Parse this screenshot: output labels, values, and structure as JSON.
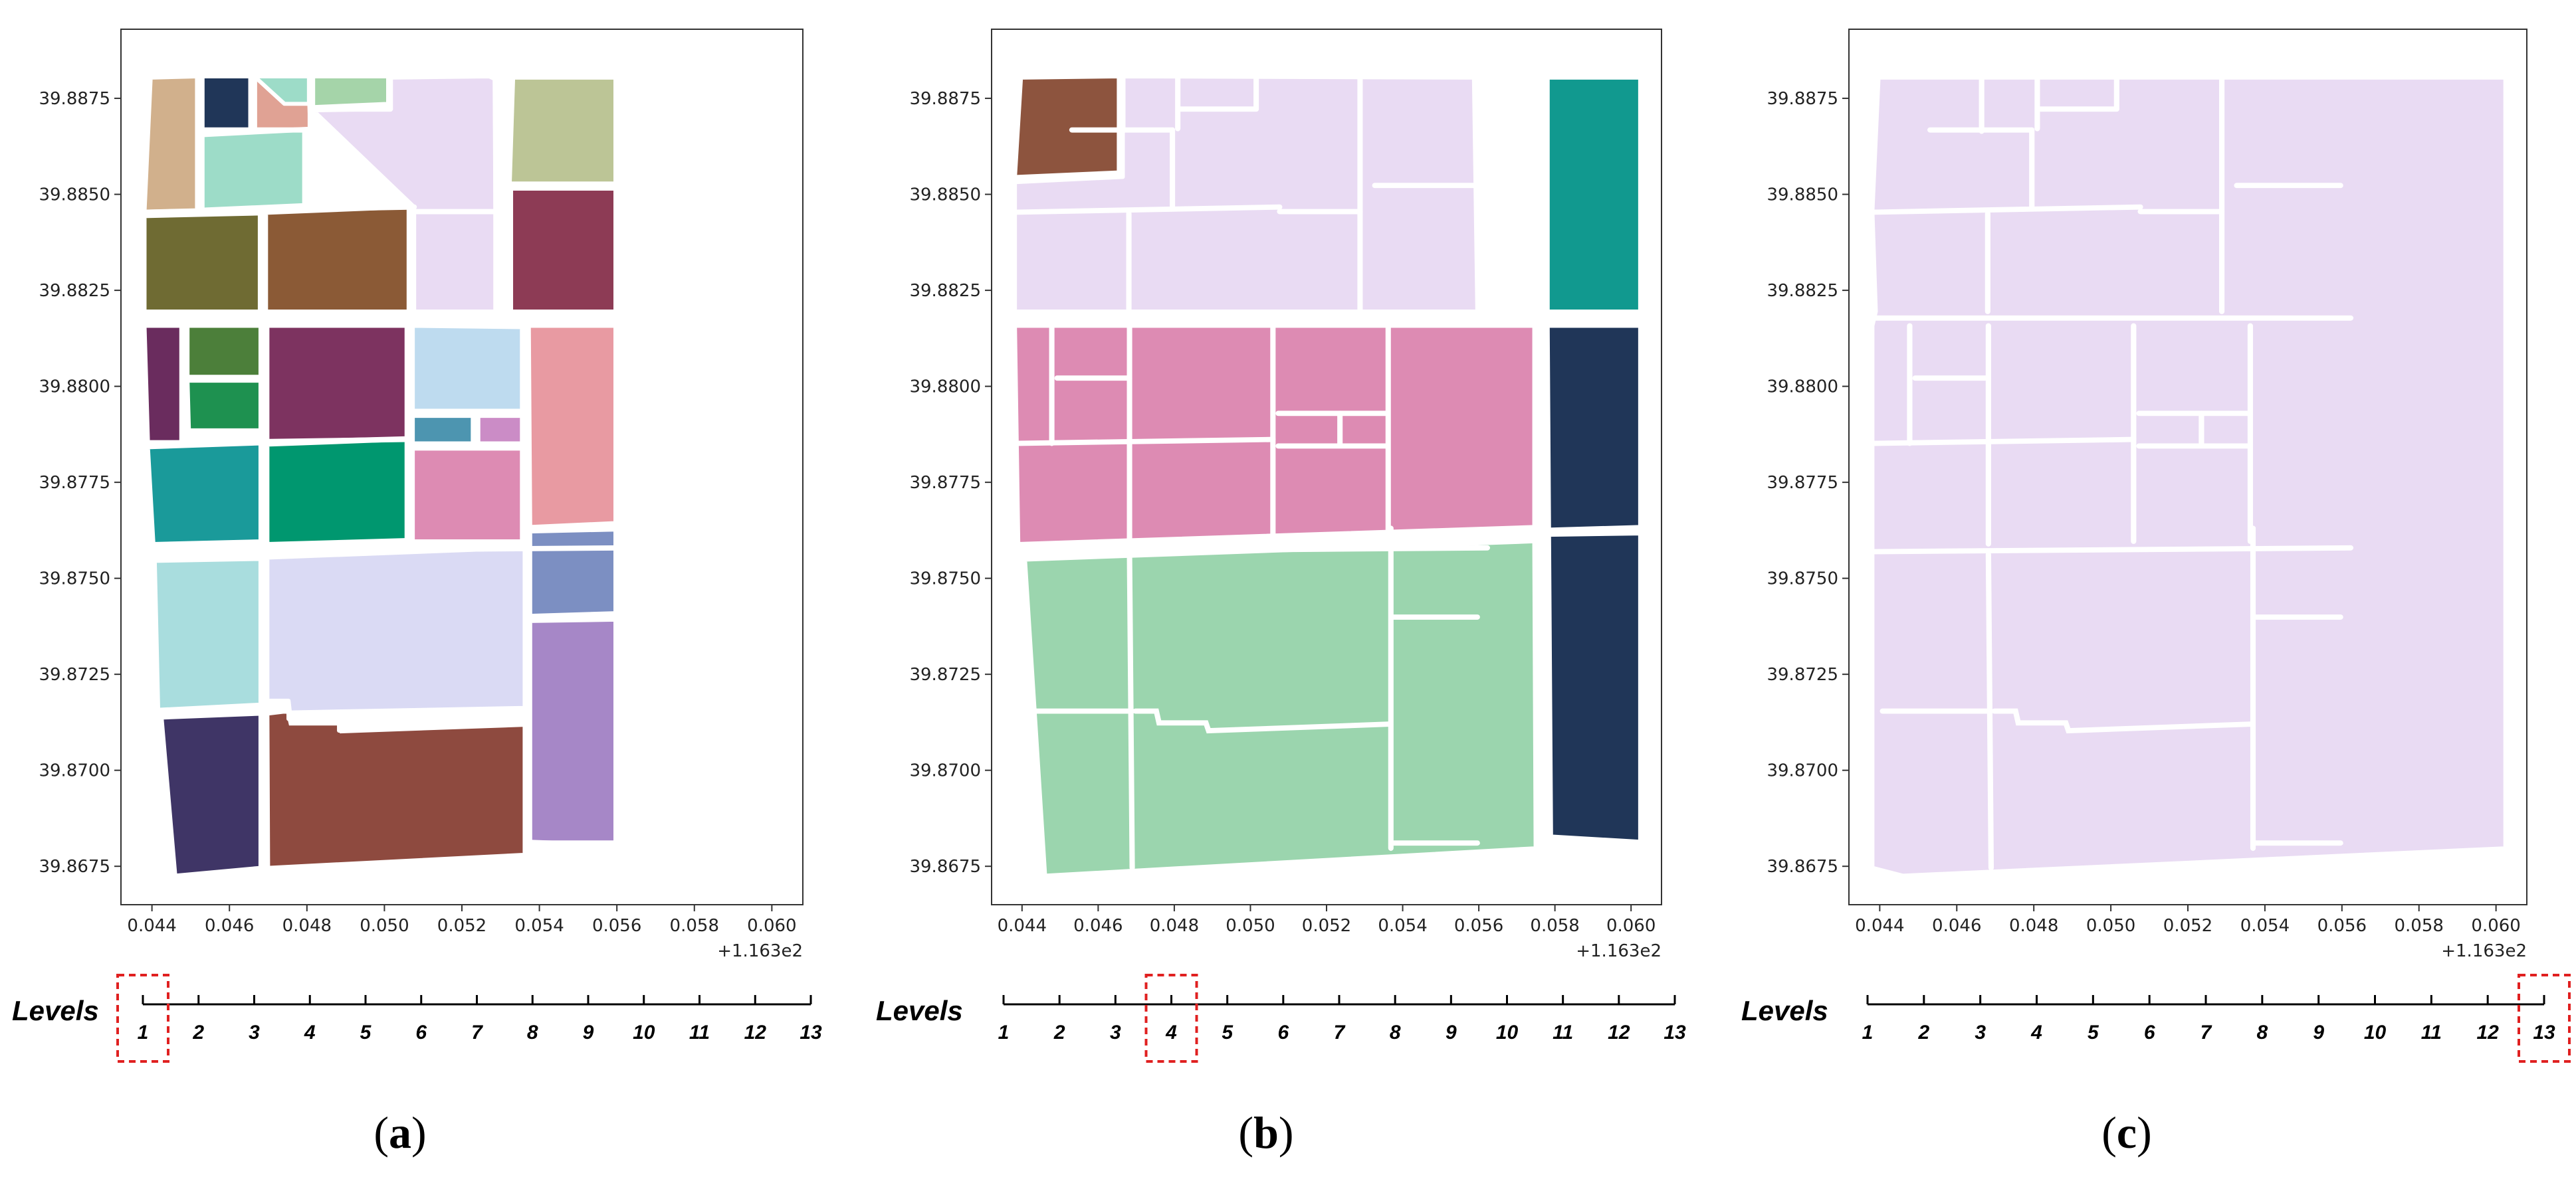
{
  "figure": {
    "panels": [
      {
        "id": "a",
        "caption_letter": "a",
        "level_selected": "1",
        "polygons": [
          {
            "id": "a-nw1",
            "fill": "#D1B08C"
          },
          {
            "id": "a-nw2",
            "fill": "#203658"
          },
          {
            "id": "a-nw3",
            "fill": "#9DDCC8"
          },
          {
            "id": "a-nw4",
            "fill": "#E0A294"
          },
          {
            "id": "a-nw5",
            "fill": "#9DDCC8"
          },
          {
            "id": "a-nw6",
            "fill": "#A5D4A9"
          },
          {
            "id": "a-n1",
            "fill": "#6F6B33"
          },
          {
            "id": "a-n2",
            "fill": "#8B5A36"
          },
          {
            "id": "a-n3",
            "fill": "#E9DBF3"
          },
          {
            "id": "a-ne1",
            "fill": "#BCC596"
          },
          {
            "id": "a-ne2",
            "fill": "#8D3B55"
          },
          {
            "id": "a-m1",
            "fill": "#6A2C5E"
          },
          {
            "id": "a-m2",
            "fill": "#4C7F3A"
          },
          {
            "id": "a-m3",
            "fill": "#1E9150"
          },
          {
            "id": "a-m4",
            "fill": "#7D3360"
          },
          {
            "id": "a-m5",
            "fill": "#1A9A9A"
          },
          {
            "id": "a-m6",
            "fill": "#00976F"
          },
          {
            "id": "a-m7",
            "fill": "#BEDBEF"
          },
          {
            "id": "a-m8",
            "fill": "#4D95B0"
          },
          {
            "id": "a-m9",
            "fill": "#CB8CC6"
          },
          {
            "id": "a-m10",
            "fill": "#DD8BB3"
          },
          {
            "id": "a-m11",
            "fill": "#E89AA2"
          },
          {
            "id": "a-s1",
            "fill": "#A9DDDE"
          },
          {
            "id": "a-s2",
            "fill": "#DADAF4"
          },
          {
            "id": "a-s3",
            "fill": "#7C8FC2"
          },
          {
            "id": "a-s4",
            "fill": "#3F3566"
          },
          {
            "id": "a-s5",
            "fill": "#8E4A3F"
          },
          {
            "id": "a-s6",
            "fill": "#A687C7"
          }
        ]
      },
      {
        "id": "b",
        "caption_letter": "b",
        "level_selected": "4",
        "polygons": [
          {
            "id": "b-nw",
            "fill": "#8D543E"
          },
          {
            "id": "b-n",
            "fill": "#E9DBF3"
          },
          {
            "id": "b-ne",
            "fill": "#11998F"
          },
          {
            "id": "b-m",
            "fill": "#DD8BB3"
          },
          {
            "id": "b-me",
            "fill": "#203658"
          },
          {
            "id": "b-s",
            "fill": "#9BD5AE"
          },
          {
            "id": "b-se",
            "fill": "#203658"
          }
        ]
      },
      {
        "id": "c",
        "caption_letter": "c",
        "level_selected": "13",
        "polygons": [
          {
            "id": "c-all",
            "fill": "#E9DBF3"
          }
        ]
      }
    ],
    "levels": {
      "title": "Levels",
      "numbers": [
        "1",
        "2",
        "3",
        "4",
        "5",
        "6",
        "7",
        "8",
        "9",
        "10",
        "11",
        "12",
        "13"
      ]
    },
    "axes": {
      "offset_label": "+1.163e2"
    }
  },
  "chart_data": [
    {
      "type": "other",
      "title": "(a)",
      "x_ticks": [
        "0.044",
        "0.046",
        "0.048",
        "0.050",
        "0.052",
        "0.054",
        "0.056",
        "0.058",
        "0.060"
      ],
      "y_ticks": [
        "39.8875",
        "39.8850",
        "39.8825",
        "39.8800",
        "39.8775",
        "39.8750",
        "39.8725",
        "39.8700",
        "39.8675"
      ],
      "x_offset": "+1.163e2",
      "xlim": [
        0.0432,
        0.0608
      ],
      "ylim": [
        39.8665,
        39.8893
      ],
      "levels_axis": [
        "1",
        "2",
        "3",
        "4",
        "5",
        "6",
        "7",
        "8",
        "9",
        "10",
        "11",
        "12",
        "13"
      ],
      "highlighted_level": 1
    },
    {
      "type": "other",
      "title": "(b)",
      "x_ticks": [
        "0.044",
        "0.046",
        "0.048",
        "0.050",
        "0.052",
        "0.054",
        "0.056",
        "0.058",
        "0.060"
      ],
      "y_ticks": [
        "39.8875",
        "39.8850",
        "39.8825",
        "39.8800",
        "39.8775",
        "39.8750",
        "39.8725",
        "39.8700",
        "39.8675"
      ],
      "x_offset": "+1.163e2",
      "xlim": [
        0.0432,
        0.0608
      ],
      "ylim": [
        39.8665,
        39.8893
      ],
      "levels_axis": [
        "1",
        "2",
        "3",
        "4",
        "5",
        "6",
        "7",
        "8",
        "9",
        "10",
        "11",
        "12",
        "13"
      ],
      "highlighted_level": 4
    },
    {
      "type": "other",
      "title": "(c)",
      "x_ticks": [
        "0.044",
        "0.046",
        "0.048",
        "0.050",
        "0.052",
        "0.054",
        "0.056",
        "0.058",
        "0.060"
      ],
      "y_ticks": [
        "39.8875",
        "39.8850",
        "39.8825",
        "39.8800",
        "39.8775",
        "39.8750",
        "39.8725",
        "39.8700",
        "39.8675"
      ],
      "x_offset": "+1.163e2",
      "xlim": [
        0.0432,
        0.0608
      ],
      "ylim": [
        39.8665,
        39.8893
      ],
      "levels_axis": [
        "1",
        "2",
        "3",
        "4",
        "5",
        "6",
        "7",
        "8",
        "9",
        "10",
        "11",
        "12",
        "13"
      ],
      "highlighted_level": 13
    }
  ]
}
